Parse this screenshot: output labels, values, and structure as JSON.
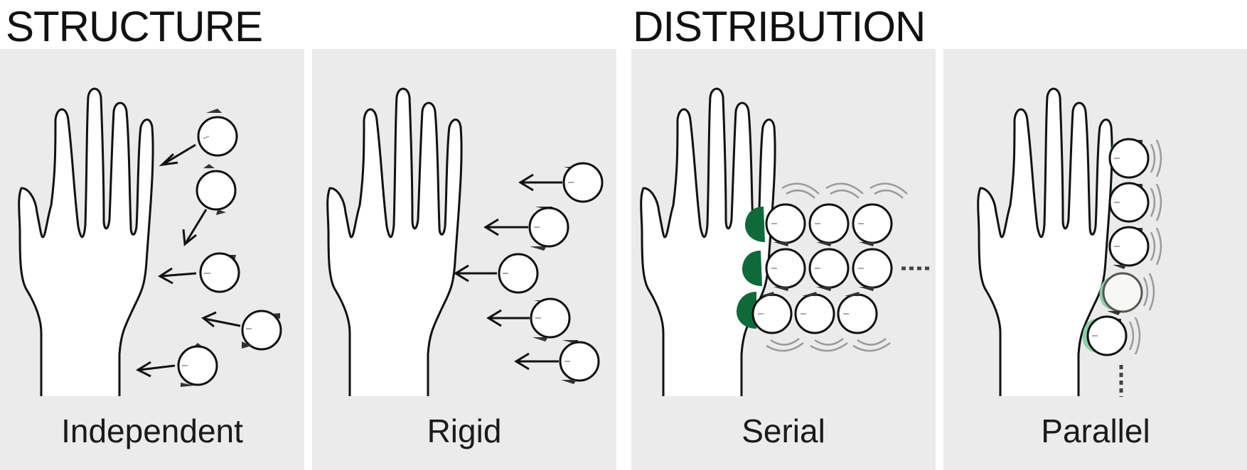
{
  "sections": {
    "structure": {
      "title": "STRUCTURE"
    },
    "distribution": {
      "title": "DISTRIBUTION"
    }
  },
  "panels": [
    {
      "id": "independent",
      "label": "Independent"
    },
    {
      "id": "rigid",
      "label": "Rigid"
    },
    {
      "id": "serial",
      "label": "Serial"
    },
    {
      "id": "parallel",
      "label": "Parallel"
    }
  ],
  "colors": {
    "panel_background": "#ebebeb",
    "outline": "#111111",
    "dark_green": "#0f6a3a",
    "light_green": "#8ecfa8",
    "vibration_lines": "#9a9a9a"
  }
}
